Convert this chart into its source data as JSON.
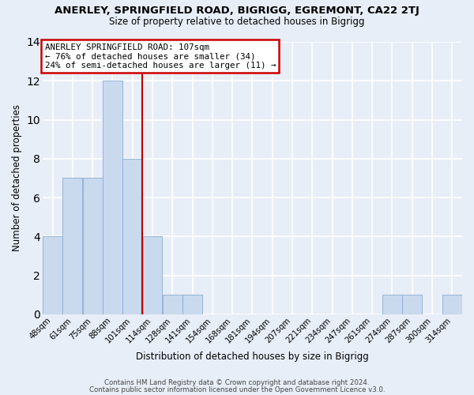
{
  "title": "ANERLEY, SPRINGFIELD ROAD, BIGRIGG, EGREMONT, CA22 2TJ",
  "subtitle": "Size of property relative to detached houses in Bigrigg",
  "xlabel": "Distribution of detached houses by size in Bigrigg",
  "ylabel": "Number of detached properties",
  "bar_color": "#c9d9ee",
  "bar_edge_color": "#8aadd4",
  "background_color": "#e8eef8",
  "grid_color": "#ffffff",
  "categories": [
    "48sqm",
    "61sqm",
    "75sqm",
    "88sqm",
    "101sqm",
    "114sqm",
    "128sqm",
    "141sqm",
    "154sqm",
    "168sqm",
    "181sqm",
    "194sqm",
    "207sqm",
    "221sqm",
    "234sqm",
    "247sqm",
    "261sqm",
    "274sqm",
    "287sqm",
    "300sqm",
    "314sqm"
  ],
  "values": [
    4,
    7,
    7,
    12,
    8,
    4,
    1,
    1,
    0,
    0,
    0,
    0,
    0,
    0,
    0,
    0,
    0,
    1,
    1,
    0,
    1
  ],
  "ylim": [
    0,
    14
  ],
  "yticks": [
    0,
    2,
    4,
    6,
    8,
    10,
    12,
    14
  ],
  "property_line_x": 4.5,
  "property_line_color": "#bb0000",
  "annotation_title": "ANERLEY SPRINGFIELD ROAD: 107sqm",
  "annotation_line1": "← 76% of detached houses are smaller (34)",
  "annotation_line2": "24% of semi-detached houses are larger (11) →",
  "annotation_box_color": "#ffffff",
  "annotation_box_edge_color": "#cc0000",
  "footer1": "Contains HM Land Registry data © Crown copyright and database right 2024.",
  "footer2": "Contains public sector information licensed under the Open Government Licence v3.0."
}
